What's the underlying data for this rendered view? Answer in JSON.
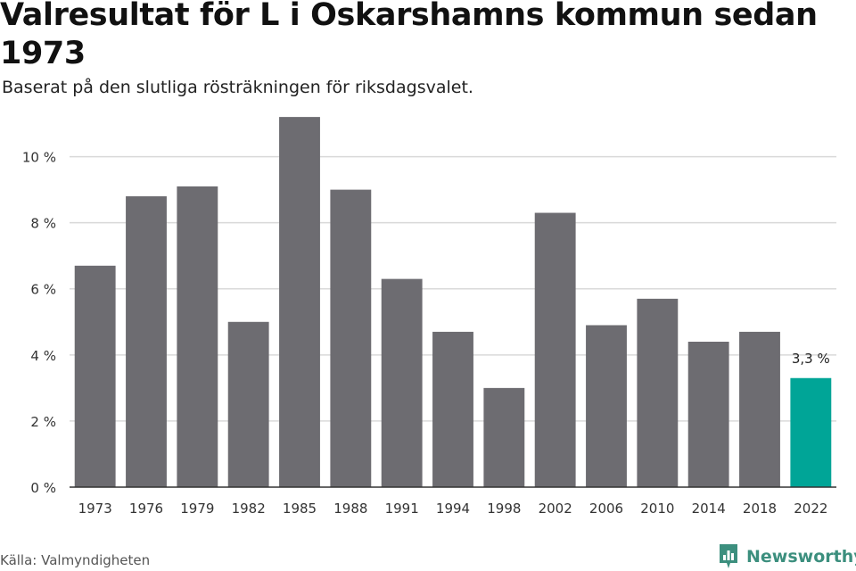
{
  "header": {
    "title": "Valresultat för L i Oskarshamns kommun sedan 1973",
    "subtitle": "Baserat på den slutliga rösträkningen för riksdagsvalet."
  },
  "footer": {
    "source": "Källa: Valmyndigheten",
    "brand": "Newsworthy",
    "brand_icon": "newsworthy-logo-icon"
  },
  "colors": {
    "bar": "#6d6c71",
    "highlight": "#00a597",
    "grid": "#d9d9d9",
    "axis": "#333333",
    "brand": "#3c8f7e"
  },
  "chart_data": {
    "type": "bar",
    "categories": [
      "1973",
      "1976",
      "1979",
      "1982",
      "1985",
      "1988",
      "1991",
      "1994",
      "1998",
      "2002",
      "2006",
      "2010",
      "2014",
      "2018",
      "2022"
    ],
    "values": [
      6.7,
      8.8,
      9.1,
      5.0,
      11.2,
      9.0,
      6.3,
      4.7,
      3.0,
      8.3,
      4.9,
      5.7,
      4.4,
      4.7,
      3.3
    ],
    "highlight_index": 14,
    "data_labels": [
      {
        "index": 14,
        "text": "3,3 %"
      }
    ],
    "yticks": [
      0,
      2,
      4,
      6,
      8,
      10
    ],
    "ytick_labels": [
      "0 %",
      "2 %",
      "4 %",
      "6 %",
      "8 %",
      "10 %"
    ],
    "ylim": [
      0,
      11.5
    ],
    "grid": true,
    "xlabel": "",
    "ylabel": ""
  }
}
